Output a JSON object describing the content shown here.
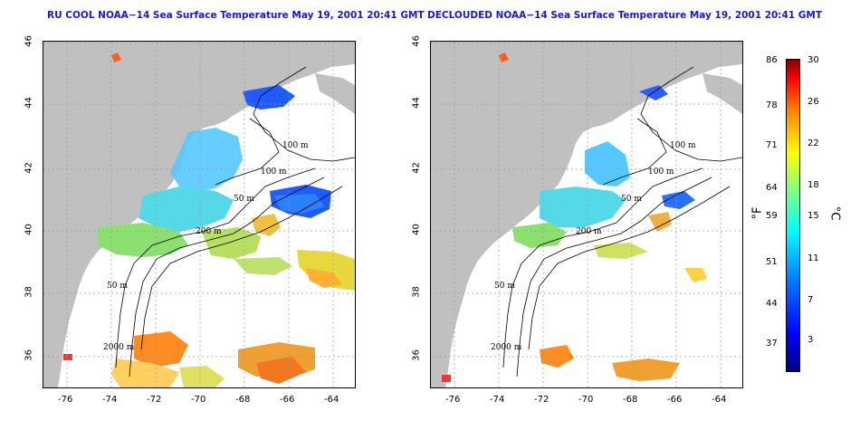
{
  "titles": {
    "left": "RU COOL NOAA−14 Sea Surface Temperature May 19, 2001 20:41 GMT",
    "right": "DECLOUDED NOAA−14 Sea Surface Temperature May 19, 2001 20:41 GMT"
  },
  "axes": {
    "lon_labels": [
      "-76",
      "-74",
      "-72",
      "-70",
      "-68",
      "-66",
      "-64"
    ],
    "lat_labels": [
      "46",
      "44",
      "42",
      "40",
      "38",
      "36"
    ]
  },
  "contour_labels": {
    "left": [
      "100 m",
      "100 m",
      "50 m",
      "200 m",
      "50 m",
      "2000 m"
    ],
    "right": [
      "100 m",
      "100 m",
      "50 m",
      "200 m",
      "50 m",
      "2000 m"
    ]
  },
  "colorbar": {
    "fahrenheit_labels": [
      "86",
      "78",
      "71",
      "64",
      "59",
      "51",
      "44",
      "37"
    ],
    "celsius_labels": [
      "30",
      "26",
      "22",
      "18",
      "15",
      "11",
      "7",
      "3"
    ],
    "unit_f": "°F",
    "unit_c": "°C",
    "colors": [
      "#000080",
      "#0000ff",
      "#0080ff",
      "#00ffff",
      "#80ff80",
      "#ffff00",
      "#ff8000",
      "#ff0000",
      "#800000"
    ]
  },
  "colors": {
    "land": "#c0c0c0",
    "title": "#1a1acc"
  }
}
